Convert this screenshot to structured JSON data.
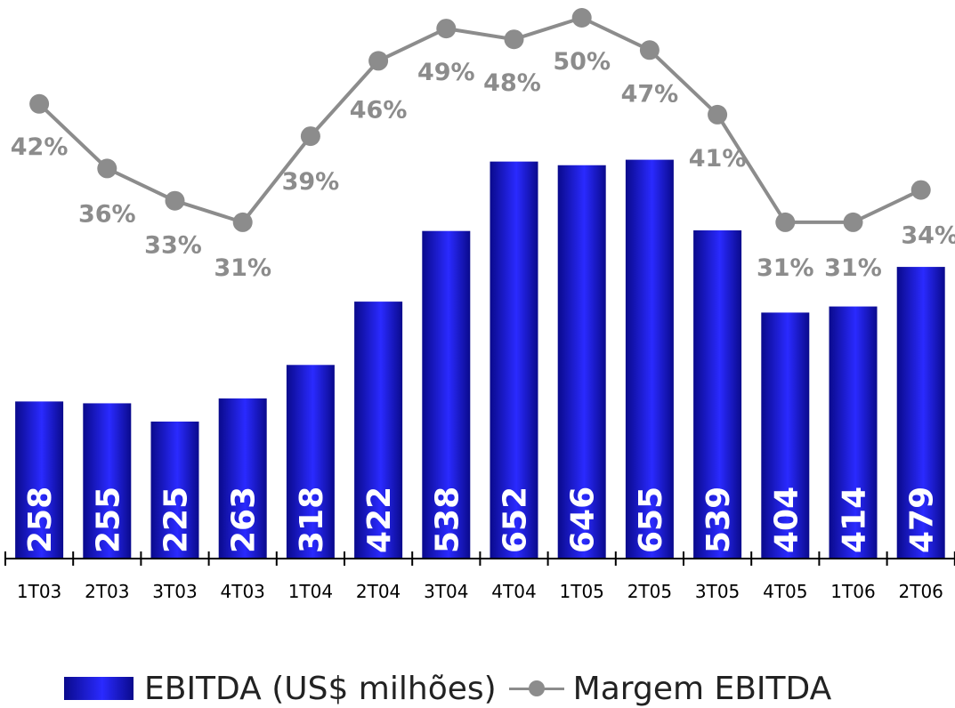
{
  "chart_data": {
    "type": "bar",
    "categories": [
      "1T03",
      "2T03",
      "3T03",
      "4T03",
      "1T04",
      "2T04",
      "3T04",
      "4T04",
      "1T05",
      "2T05",
      "3T05",
      "4T05",
      "1T06",
      "2T06"
    ],
    "series": [
      {
        "name": "EBITDA (US$ milhões)",
        "type": "bar",
        "values": [
          258,
          255,
          225,
          263,
          318,
          422,
          538,
          652,
          646,
          655,
          539,
          404,
          414,
          479
        ],
        "data_labels": [
          "258",
          "255",
          "225",
          "263",
          "318",
          "422",
          "538",
          "652",
          "646",
          "655",
          "539",
          "404",
          "414",
          "479"
        ]
      },
      {
        "name": "Margem EBITDA",
        "type": "line",
        "values": [
          42,
          36,
          33,
          31,
          39,
          46,
          49,
          48,
          50,
          47,
          41,
          31,
          31,
          34
        ],
        "data_labels": [
          "42%",
          "36%",
          "33%",
          "31%",
          "39%",
          "46%",
          "49%",
          "48%",
          "50%",
          "47%",
          "41%",
          "31%",
          "31%",
          "34%"
        ]
      }
    ],
    "legend": "bottom",
    "grid": false,
    "colors": {
      "bar": "#1a1aff",
      "bar_dark": "#0a0a8c",
      "line": "#8c8c8c",
      "bar_label": "#ffffff",
      "line_label": "#8c8c8c"
    }
  },
  "legend": {
    "bar_label": "EBITDA (US$ milhões)",
    "line_label": "Margem EBITDA"
  }
}
